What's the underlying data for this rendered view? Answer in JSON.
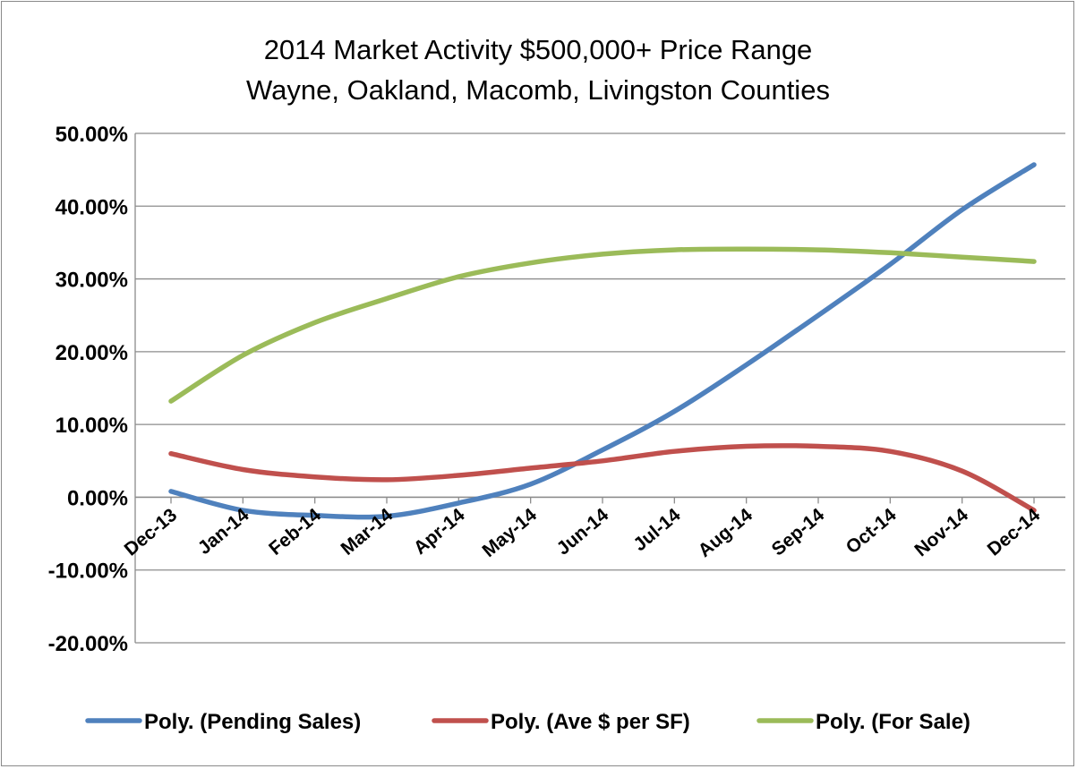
{
  "chart_data": {
    "type": "line",
    "title": [
      "2014 Market Activity $500,000+ Price Range",
      "Wayne, Oakland, Macomb, Livingston Counties"
    ],
    "xlabel": "",
    "ylabel": "",
    "categories": [
      "Dec-13",
      "Jan-14",
      "Feb-14",
      "Mar-14",
      "Apr-14",
      "May-14",
      "Jun-14",
      "Jul-14",
      "Aug-14",
      "Sep-14",
      "Oct-14",
      "Nov-14",
      "Dec-14"
    ],
    "ylim": [
      -20,
      50
    ],
    "yticks": [
      50,
      40,
      30,
      20,
      10,
      0,
      -10,
      -20
    ],
    "ytick_labels": [
      "50.00%",
      "40.00%",
      "30.00%",
      "20.00%",
      "10.00%",
      "0.00%",
      "-10.00%",
      "-20.00%"
    ],
    "grid": true,
    "legend_position": "bottom",
    "series": [
      {
        "name": "Poly. (Pending Sales)",
        "color": "#4f81bd",
        "values": [
          0.8,
          -1.8,
          -2.5,
          -2.6,
          -0.8,
          1.8,
          6.5,
          11.8,
          18.2,
          25.0,
          32.0,
          39.5,
          45.7
        ]
      },
      {
        "name": "Poly. (Ave $ per SF)",
        "color": "#c0504d",
        "values": [
          6.0,
          3.8,
          2.8,
          2.4,
          3.0,
          4.0,
          5.0,
          6.3,
          7.0,
          7.0,
          6.3,
          3.6,
          -1.8
        ]
      },
      {
        "name": "Poly. (For Sale)",
        "color": "#9bbb59",
        "values": [
          13.2,
          19.5,
          24.0,
          27.3,
          30.3,
          32.2,
          33.4,
          34.0,
          34.1,
          34.0,
          33.6,
          33.0,
          32.4
        ]
      }
    ]
  }
}
